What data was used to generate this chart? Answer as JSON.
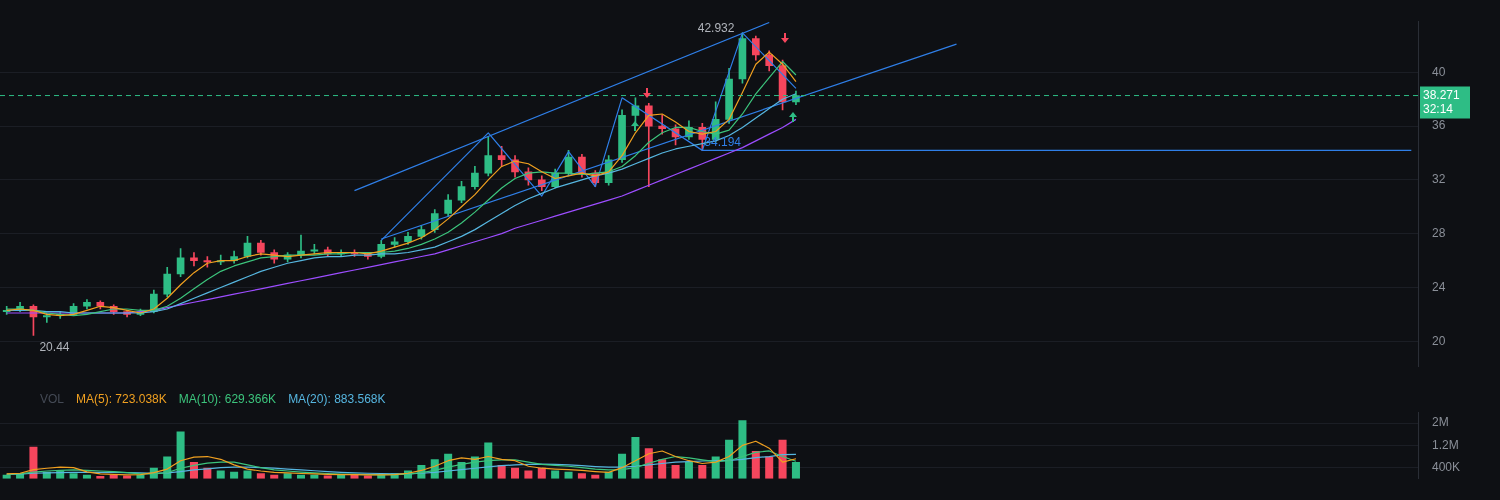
{
  "chart_data": [
    {
      "type": "candlestick",
      "categories": [
        null,
        null,
        null,
        null,
        null,
        null,
        null,
        null,
        null,
        null,
        null,
        null,
        null,
        null,
        null,
        null,
        null,
        null,
        null,
        null,
        null,
        null,
        null,
        null,
        null,
        null,
        null,
        null,
        null,
        null,
        null,
        null,
        null,
        null,
        null,
        null,
        null,
        null,
        null,
        null,
        null,
        null,
        null,
        null,
        null,
        null,
        null,
        null,
        null,
        null,
        null,
        null,
        null,
        null,
        null,
        null,
        null,
        null,
        null,
        null,
        null,
        null,
        null,
        null,
        null,
        null,
        null,
        null,
        null,
        null,
        null,
        null,
        null,
        null,
        null,
        null,
        null,
        null,
        null,
        null,
        null,
        null,
        null,
        null,
        null,
        null,
        null,
        null,
        null,
        null,
        null,
        null,
        null,
        null,
        null,
        null,
        null,
        null,
        null,
        null,
        null,
        null,
        null,
        null,
        null,
        null
      ],
      "ohlc": [
        [
          22.2,
          22.6,
          22.0,
          22.3
        ],
        [
          22.3,
          22.9,
          22.2,
          22.6
        ],
        [
          22.6,
          22.7,
          20.44,
          21.8
        ],
        [
          21.8,
          22.1,
          21.4,
          21.9
        ],
        [
          21.9,
          22.2,
          21.7,
          22.0
        ],
        [
          22.0,
          22.8,
          21.9,
          22.6
        ],
        [
          22.6,
          23.1,
          22.4,
          22.9
        ],
        [
          22.9,
          23.0,
          22.4,
          22.6
        ],
        [
          22.6,
          22.7,
          22.0,
          22.2
        ],
        [
          22.2,
          22.3,
          21.8,
          22.0
        ],
        [
          22.0,
          22.4,
          21.9,
          22.2
        ],
        [
          22.2,
          23.8,
          22.1,
          23.5
        ],
        [
          23.5,
          25.5,
          23.3,
          25.0
        ],
        [
          25.0,
          26.9,
          24.8,
          26.2
        ],
        [
          26.2,
          26.6,
          25.6,
          26.0
        ],
        [
          26.0,
          26.3,
          25.5,
          25.9
        ],
        [
          25.9,
          26.4,
          25.7,
          26.0
        ],
        [
          26.0,
          26.7,
          25.8,
          26.3
        ],
        [
          26.3,
          27.8,
          26.2,
          27.3
        ],
        [
          27.3,
          27.5,
          26.4,
          26.6
        ],
        [
          26.6,
          26.8,
          25.8,
          26.1
        ],
        [
          26.1,
          26.6,
          25.9,
          26.4
        ],
        [
          26.4,
          27.9,
          26.2,
          26.7
        ],
        [
          26.7,
          27.2,
          26.5,
          26.8
        ],
        [
          26.8,
          27.0,
          26.3,
          26.5
        ],
        [
          26.5,
          26.8,
          26.3,
          26.6
        ],
        [
          26.6,
          26.8,
          26.3,
          26.5
        ],
        [
          26.5,
          26.6,
          26.1,
          26.3
        ],
        [
          26.3,
          27.5,
          26.2,
          27.2
        ],
        [
          27.2,
          27.7,
          27.0,
          27.4
        ],
        [
          27.4,
          28.1,
          27.2,
          27.8
        ],
        [
          27.8,
          28.6,
          27.6,
          28.3
        ],
        [
          28.3,
          29.8,
          28.1,
          29.5
        ],
        [
          29.5,
          30.9,
          29.3,
          30.5
        ],
        [
          30.5,
          31.9,
          30.3,
          31.5
        ],
        [
          31.5,
          33.0,
          31.3,
          32.5
        ],
        [
          32.5,
          35.2,
          32.3,
          33.8
        ],
        [
          33.8,
          34.5,
          33.0,
          33.5
        ],
        [
          33.5,
          33.8,
          32.2,
          32.6
        ],
        [
          32.6,
          32.9,
          31.6,
          32.0
        ],
        [
          32.0,
          32.3,
          31.2,
          31.5
        ],
        [
          31.5,
          32.8,
          31.4,
          32.5
        ],
        [
          32.5,
          34.2,
          32.3,
          33.7
        ],
        [
          33.7,
          33.9,
          32.2,
          32.5
        ],
        [
          32.5,
          32.7,
          31.5,
          31.8
        ],
        [
          31.8,
          33.8,
          31.6,
          33.5
        ],
        [
          33.5,
          37.2,
          33.3,
          36.8
        ],
        [
          36.8,
          38.1,
          36.3,
          37.5
        ],
        [
          37.5,
          37.7,
          31.5,
          36.0
        ],
        [
          36.0,
          36.8,
          35.4,
          35.8
        ],
        [
          35.8,
          36.1,
          34.6,
          35.2
        ],
        [
          35.2,
          36.4,
          35.0,
          35.9
        ],
        [
          35.9,
          36.2,
          34.194,
          35.0
        ],
        [
          35.0,
          37.8,
          34.8,
          36.5
        ],
        [
          36.5,
          40.3,
          36.2,
          39.5
        ],
        [
          39.5,
          42.932,
          39.2,
          42.5
        ],
        [
          42.5,
          42.7,
          40.9,
          41.3
        ],
        [
          41.3,
          41.6,
          40.1,
          40.5
        ],
        [
          40.5,
          40.9,
          37.2,
          37.8
        ],
        [
          37.8,
          38.6,
          37.6,
          38.271
        ],
        null,
        null,
        null,
        null,
        null,
        null,
        null,
        null,
        null,
        null,
        null,
        null,
        null,
        null,
        null,
        null,
        null,
        null,
        null,
        null,
        null,
        null,
        null,
        null,
        null,
        null,
        null,
        null,
        null,
        null,
        null,
        null,
        null,
        null,
        null,
        null,
        null,
        null,
        null,
        null,
        null,
        null,
        null,
        null,
        null,
        null
      ],
      "series": [
        {
          "type": "line",
          "color": "#f0a020",
          "values": [
            22.3,
            22.4,
            22.3,
            22.0,
            21.9,
            22.0,
            22.3,
            22.6,
            22.5,
            22.3,
            22.1,
            22.4,
            23.2,
            24.2,
            25.1,
            25.8,
            26.0,
            26.0,
            26.3,
            26.5,
            26.4,
            26.3,
            26.4,
            26.5,
            26.6,
            26.6,
            26.6,
            26.5,
            26.7,
            27.0,
            27.3,
            27.7,
            28.3,
            29.1,
            30.0,
            30.9,
            32.0,
            33.0,
            33.4,
            33.2,
            32.6,
            32.1,
            32.3,
            32.5,
            32.3,
            32.6,
            33.8,
            35.5,
            36.8,
            36.9,
            36.3,
            35.6,
            35.4,
            35.6,
            36.5,
            38.5,
            40.6,
            41.5,
            40.6,
            39.3,
            null,
            null,
            null,
            null,
            null,
            null,
            null,
            null,
            null,
            null,
            null,
            null,
            null,
            null,
            null,
            null,
            null,
            null,
            null,
            null,
            null,
            null,
            null,
            null,
            null,
            null,
            null,
            null,
            null,
            null,
            null,
            null,
            null,
            null,
            null,
            null,
            null,
            null,
            null,
            null,
            null,
            null,
            null,
            null,
            null,
            null
          ]
        },
        {
          "type": "line",
          "color": "#3cc47c",
          "values": [
            22.4,
            22.4,
            22.3,
            22.1,
            22.0,
            21.9,
            22.0,
            22.2,
            22.4,
            22.4,
            22.3,
            22.3,
            22.6,
            23.2,
            23.9,
            24.6,
            25.2,
            25.6,
            25.9,
            26.2,
            26.3,
            26.4,
            26.4,
            26.4,
            26.5,
            26.5,
            26.6,
            26.6,
            26.6,
            26.7,
            26.9,
            27.2,
            27.6,
            28.1,
            28.8,
            29.6,
            30.5,
            31.4,
            32.1,
            32.5,
            32.6,
            32.5,
            32.5,
            32.4,
            32.5,
            32.6,
            33.0,
            33.8,
            34.8,
            35.5,
            35.9,
            35.9,
            35.6,
            35.4,
            35.7,
            36.9,
            38.4,
            39.6,
            40.8,
            39.8,
            null,
            null,
            null,
            null,
            null,
            null,
            null,
            null,
            null,
            null,
            null,
            null,
            null,
            null,
            null,
            null,
            null,
            null,
            null,
            null,
            null,
            null,
            null,
            null,
            null,
            null,
            null,
            null,
            null,
            null,
            null,
            null,
            null,
            null,
            null,
            null,
            null,
            null,
            null,
            null,
            null,
            null,
            null,
            null,
            null,
            null
          ]
        },
        {
          "type": "line",
          "color": "#56b6e0",
          "values": [
            22.3,
            22.3,
            22.3,
            22.2,
            22.2,
            22.1,
            22.1,
            22.1,
            22.1,
            22.1,
            22.1,
            22.2,
            22.4,
            22.8,
            23.2,
            23.6,
            24.0,
            24.4,
            24.8,
            25.2,
            25.5,
            25.8,
            26.0,
            26.2,
            26.3,
            26.3,
            26.4,
            26.4,
            26.5,
            26.5,
            26.6,
            26.8,
            27.0,
            27.4,
            27.8,
            28.3,
            28.9,
            29.5,
            30.1,
            30.6,
            31.0,
            31.4,
            31.7,
            32.0,
            32.3,
            32.5,
            32.8,
            33.2,
            33.6,
            34.0,
            34.3,
            34.5,
            34.7,
            34.9,
            35.3,
            35.9,
            36.6,
            37.3,
            38.0,
            38.4,
            null,
            null,
            null,
            null,
            null,
            null,
            null,
            null,
            null,
            null,
            null,
            null,
            null,
            null,
            null,
            null,
            null,
            null,
            null,
            null,
            null,
            null,
            null,
            null,
            null,
            null,
            null,
            null,
            null,
            null,
            null,
            null,
            null,
            null,
            null,
            null,
            null,
            null,
            null,
            null,
            null,
            null,
            null,
            null,
            null,
            null
          ]
        },
        {
          "type": "line",
          "color": "#9c4dff",
          "values": [
            22.1,
            22.1,
            22.1,
            22.1,
            22.1,
            22.1,
            22.1,
            22.1,
            22.1,
            22.1,
            22.2,
            22.3,
            22.5,
            22.7,
            22.9,
            23.1,
            23.3,
            23.5,
            23.7,
            23.9,
            24.1,
            24.3,
            24.5,
            24.7,
            24.9,
            25.1,
            25.3,
            25.5,
            25.7,
            25.9,
            26.1,
            26.3,
            26.5,
            26.8,
            27.1,
            27.4,
            27.7,
            28.0,
            28.4,
            28.7,
            29.0,
            29.3,
            29.6,
            29.9,
            30.2,
            30.5,
            30.8,
            31.2,
            31.6,
            32.0,
            32.4,
            32.8,
            33.2,
            33.6,
            34.0,
            34.4,
            34.9,
            35.4,
            35.9,
            36.5,
            null,
            null,
            null,
            null,
            null,
            null,
            null,
            null,
            null,
            null,
            null,
            null,
            null,
            null,
            null,
            null,
            null,
            null,
            null,
            null,
            null,
            null,
            null,
            null,
            null,
            null,
            null,
            null,
            null,
            null,
            null,
            null,
            null,
            null,
            null,
            null,
            null,
            null,
            null,
            null,
            null,
            null,
            null,
            null,
            null,
            null
          ]
        },
        {
          "type": "line",
          "color": "#2f7fe8",
          "values": [
            null,
            null,
            null,
            null,
            null,
            null,
            null,
            null,
            null,
            null,
            null,
            null,
            null,
            null,
            null,
            null,
            null,
            null,
            null,
            null,
            null,
            null,
            null,
            null,
            null,
            null,
            null,
            null,
            27.5,
            null,
            null,
            null,
            null,
            null,
            null,
            null,
            35.5,
            null,
            null,
            null,
            30.8,
            null,
            34.1,
            null,
            31.5,
            null,
            38.1,
            null,
            null,
            null,
            null,
            null,
            34.194,
            null,
            null,
            42.932,
            null,
            null,
            null,
            38.8,
            null,
            null,
            null,
            null,
            null,
            null,
            null,
            null,
            null,
            null,
            null,
            null,
            null,
            null,
            null,
            null,
            null,
            null,
            null,
            null,
            null,
            null,
            null,
            null,
            null,
            null,
            null,
            null,
            null,
            null,
            null,
            null,
            null,
            null,
            null,
            null,
            null,
            null,
            null,
            null,
            null,
            null,
            null,
            null,
            null,
            null
          ]
        },
        {
          "type": "line",
          "color": "#2f7fe8",
          "values": [
            null,
            null,
            null,
            null,
            null,
            null,
            null,
            null,
            null,
            null,
            null,
            null,
            null,
            null,
            null,
            null,
            null,
            null,
            null,
            null,
            null,
            null,
            null,
            null,
            null,
            null,
            31.2,
            null,
            null,
            null,
            null,
            null,
            null,
            null,
            null,
            null,
            null,
            null,
            null,
            null,
            null,
            null,
            null,
            null,
            null,
            null,
            null,
            null,
            null,
            null,
            null,
            null,
            null,
            null,
            null,
            null,
            null,
            43.7,
            null,
            null,
            null,
            null,
            null,
            null,
            null,
            null,
            null,
            null,
            null,
            null,
            null,
            null,
            null,
            null,
            null,
            null,
            null,
            null,
            null,
            null,
            null,
            null,
            null,
            null,
            null,
            null,
            null,
            null,
            null,
            null,
            null,
            null,
            null,
            null,
            null,
            null,
            null,
            null,
            null,
            null,
            null,
            null,
            null,
            null,
            null,
            null
          ]
        },
        {
          "type": "line",
          "color": "#2f7fe8",
          "values": [
            null,
            null,
            null,
            null,
            null,
            null,
            null,
            null,
            null,
            null,
            null,
            null,
            null,
            null,
            null,
            null,
            null,
            null,
            null,
            null,
            null,
            null,
            null,
            null,
            null,
            null,
            null,
            null,
            27.6,
            null,
            null,
            null,
            null,
            null,
            null,
            null,
            null,
            null,
            null,
            null,
            null,
            null,
            null,
            null,
            null,
            null,
            null,
            null,
            null,
            null,
            null,
            null,
            null,
            null,
            null,
            null,
            null,
            null,
            null,
            null,
            null,
            null,
            null,
            null,
            null,
            null,
            null,
            null,
            null,
            null,
            null,
            42.1,
            null,
            null,
            null,
            null,
            null,
            null,
            null,
            null,
            null,
            null,
            null,
            null,
            null,
            null,
            null,
            null,
            null,
            null,
            null,
            null,
            null,
            null,
            null,
            null,
            null,
            null,
            null,
            null,
            null,
            null,
            null,
            null,
            null,
            null
          ]
        },
        {
          "type": "line",
          "color": "#2f7fe8",
          "values": [
            null,
            null,
            null,
            null,
            null,
            null,
            null,
            null,
            null,
            null,
            null,
            null,
            null,
            null,
            null,
            null,
            null,
            null,
            null,
            null,
            null,
            null,
            null,
            null,
            null,
            null,
            null,
            null,
            null,
            null,
            null,
            null,
            null,
            null,
            null,
            null,
            null,
            null,
            null,
            null,
            null,
            null,
            null,
            null,
            null,
            null,
            null,
            null,
            null,
            null,
            null,
            null,
            34.194,
            null,
            null,
            null,
            null,
            null,
            null,
            null,
            null,
            null,
            null,
            null,
            null,
            null,
            null,
            null,
            null,
            null,
            null,
            null,
            null,
            null,
            null,
            null,
            null,
            null,
            null,
            null,
            null,
            null,
            null,
            null,
            null,
            null,
            null,
            null,
            null,
            null,
            null,
            null,
            null,
            null,
            null,
            null,
            null,
            null,
            null,
            null,
            null,
            null,
            null,
            null,
            null,
            34.194
          ]
        }
      ],
      "ylim": [
        18.1,
        43.8
      ],
      "yticks": [
        20,
        24,
        28,
        32,
        36,
        40
      ],
      "grid": "y",
      "marker": "none",
      "legend": false,
      "ref_lines": [
        {
          "axis": "y",
          "value": 38.271,
          "label": "38.271",
          "color": "#2ebd85",
          "line_style": "dashed"
        }
      ],
      "annotations": [
        "42.932",
        "20.44",
        {
          "text": "34.194",
          "y": 34.194
        },
        "32:14"
      ]
    },
    {
      "type": "bar",
      "title": "VOL",
      "categories": [
        null,
        null,
        null,
        null,
        null,
        null,
        null,
        null,
        null,
        null,
        null,
        null,
        null,
        null,
        null,
        null,
        null,
        null,
        null,
        null,
        null,
        null,
        null,
        null,
        null,
        null,
        null,
        null,
        null,
        null,
        null,
        null,
        null,
        null,
        null,
        null,
        null,
        null,
        null,
        null,
        null,
        null,
        null,
        null,
        null,
        null,
        null,
        null,
        null,
        null,
        null,
        null,
        null,
        null,
        null,
        null,
        null,
        null,
        null,
        null,
        null,
        null,
        null,
        null,
        null,
        null,
        null,
        null,
        null,
        null,
        null,
        null,
        null,
        null,
        null,
        null,
        null,
        null,
        null,
        null,
        null,
        null,
        null,
        null,
        null,
        null,
        null,
        null,
        null,
        null,
        null,
        null,
        null,
        null,
        null,
        null,
        null,
        null,
        null,
        null,
        null,
        null,
        null,
        null,
        null,
        null
      ],
      "series": [
        {
          "type": "bar",
          "colors": [
            "#2ebd85",
            "#2ebd85",
            "#f6465d",
            "#2ebd85",
            "#2ebd85",
            "#2ebd85",
            "#2ebd85",
            "#f6465d",
            "#f6465d",
            "#f6465d",
            "#2ebd85",
            "#2ebd85",
            "#2ebd85",
            "#2ebd85",
            "#f6465d",
            "#f6465d",
            "#2ebd85",
            "#2ebd85",
            "#2ebd85",
            "#f6465d",
            "#f6465d",
            "#2ebd85",
            "#2ebd85",
            "#2ebd85",
            "#f6465d",
            "#2ebd85",
            "#f6465d",
            "#f6465d",
            "#2ebd85",
            "#2ebd85",
            "#2ebd85",
            "#2ebd85",
            "#2ebd85",
            "#2ebd85",
            "#2ebd85",
            "#2ebd85",
            "#2ebd85",
            "#f6465d",
            "#f6465d",
            "#f6465d",
            "#f6465d",
            "#2ebd85",
            "#2ebd85",
            "#f6465d",
            "#f6465d",
            "#2ebd85",
            "#2ebd85",
            "#2ebd85",
            "#f6465d",
            "#f6465d",
            "#f6465d",
            "#2ebd85",
            "#f6465d",
            "#2ebd85",
            "#2ebd85",
            "#2ebd85",
            "#f6465d",
            "#f6465d",
            "#f6465d",
            "#2ebd85",
            null,
            null,
            null,
            null,
            null,
            null,
            null,
            null,
            null,
            null,
            null,
            null,
            null,
            null,
            null,
            null,
            null,
            null,
            null,
            null,
            null,
            null,
            null,
            null,
            null,
            null,
            null,
            null,
            null,
            null,
            null,
            null,
            null,
            null,
            null,
            null,
            null,
            null,
            null,
            null,
            null,
            null,
            null,
            null,
            null,
            null
          ],
          "values": [
            150000,
            200000,
            1150000,
            250000,
            300000,
            200000,
            150000,
            100000,
            150000,
            120000,
            150000,
            400000,
            800000,
            1700000,
            600000,
            400000,
            300000,
            250000,
            300000,
            200000,
            150000,
            200000,
            150000,
            150000,
            120000,
            150000,
            150000,
            120000,
            150000,
            200000,
            300000,
            500000,
            700000,
            900000,
            600000,
            800000,
            1300000,
            500000,
            400000,
            300000,
            400000,
            300000,
            250000,
            200000,
            150000,
            250000,
            900000,
            1500000,
            1100000,
            700000,
            500000,
            600000,
            500000,
            800000,
            1400000,
            2100000,
            1000000,
            800000,
            1400000,
            600000,
            null,
            null,
            null,
            null,
            null,
            null,
            null,
            null,
            null,
            null,
            null,
            null,
            null,
            null,
            null,
            null,
            null,
            null,
            null,
            null,
            null,
            null,
            null,
            null,
            null,
            null,
            null,
            null,
            null,
            null,
            null,
            null,
            null,
            null,
            null,
            null,
            null,
            null,
            null,
            null,
            null,
            null,
            null,
            null,
            null,
            null
          ]
        },
        {
          "type": "line",
          "name": "MA(5): 723.038K",
          "color": "#f0a020",
          "values": [
            180000,
            200000,
            330000,
            380000,
            420000,
            400000,
            250000,
            180000,
            160000,
            140000,
            150000,
            220000,
            350000,
            650000,
            780000,
            800000,
            700000,
            500000,
            350000,
            280000,
            230000,
            210000,
            190000,
            180000,
            160000,
            150000,
            150000,
            140000,
            140000,
            150000,
            200000,
            300000,
            450000,
            650000,
            750000,
            700000,
            800000,
            700000,
            650000,
            450000,
            380000,
            350000,
            330000,
            300000,
            260000,
            230000,
            400000,
            650000,
            900000,
            1000000,
            800000,
            650000,
            550000,
            600000,
            800000,
            1200000,
            1350000,
            1100000,
            600000,
            720000,
            null,
            null,
            null,
            null,
            null,
            null,
            null,
            null,
            null,
            null,
            null,
            null,
            null,
            null,
            null,
            null,
            null,
            null,
            null,
            null,
            null,
            null,
            null,
            null,
            null,
            null,
            null,
            null,
            null,
            null,
            null,
            null,
            null,
            null,
            null,
            null,
            null,
            null,
            null,
            null,
            null,
            null,
            null,
            null,
            null,
            null
          ]
        },
        {
          "type": "line",
          "name": "MA(10): 629.366K",
          "color": "#3cc47c",
          "values": [
            170000,
            180000,
            240000,
            280000,
            300000,
            320000,
            300000,
            280000,
            260000,
            220000,
            180000,
            180000,
            220000,
            380000,
            480000,
            560000,
            600000,
            600000,
            500000,
            400000,
            320000,
            280000,
            240000,
            210000,
            190000,
            170000,
            160000,
            150000,
            150000,
            150000,
            170000,
            220000,
            300000,
            420000,
            520000,
            600000,
            650000,
            680000,
            680000,
            600000,
            520000,
            480000,
            450000,
            400000,
            350000,
            320000,
            330000,
            400000,
            560000,
            700000,
            800000,
            750000,
            680000,
            620000,
            650000,
            800000,
            950000,
            1000000,
            800000,
            630000,
            null,
            null,
            null,
            null,
            null,
            null,
            null,
            null,
            null,
            null,
            null,
            null,
            null,
            null,
            null,
            null,
            null,
            null,
            null,
            null,
            null,
            null,
            null,
            null,
            null,
            null,
            null,
            null,
            null,
            null,
            null,
            null,
            null,
            null,
            null,
            null,
            null,
            null,
            null,
            null,
            null,
            null,
            null,
            null,
            null,
            null
          ]
        },
        {
          "type": "line",
          "name": "MA(20): 883.568K",
          "color": "#56b6e0",
          "values": [
            160000,
            170000,
            200000,
            210000,
            220000,
            230000,
            230000,
            230000,
            230000,
            220000,
            210000,
            200000,
            210000,
            260000,
            320000,
            360000,
            400000,
            420000,
            420000,
            400000,
            380000,
            350000,
            320000,
            290000,
            260000,
            230000,
            210000,
            200000,
            190000,
            180000,
            180000,
            200000,
            230000,
            280000,
            330000,
            380000,
            430000,
            470000,
            500000,
            520000,
            530000,
            520000,
            500000,
            470000,
            440000,
            420000,
            420000,
            450000,
            500000,
            550000,
            600000,
            620000,
            640000,
            650000,
            660000,
            700000,
            760000,
            800000,
            870000,
            880000,
            null,
            null,
            null,
            null,
            null,
            null,
            null,
            null,
            null,
            null,
            null,
            null,
            null,
            null,
            null,
            null,
            null,
            null,
            null,
            null,
            null,
            null,
            null,
            null,
            null,
            null,
            null,
            null,
            null,
            null,
            null,
            null,
            null,
            null,
            null,
            null,
            null,
            null,
            null,
            null,
            null,
            null,
            null,
            null,
            null,
            null
          ]
        }
      ],
      "ylim": [
        0,
        2400000
      ],
      "yticks": [
        {
          "value": 400000,
          "label": "400K"
        },
        {
          "value": 1200000,
          "label": "1.2M"
        },
        {
          "value": 2000000,
          "label": "2M"
        }
      ],
      "grid": "y",
      "marker": "none",
      "legend": "top left"
    }
  ]
}
